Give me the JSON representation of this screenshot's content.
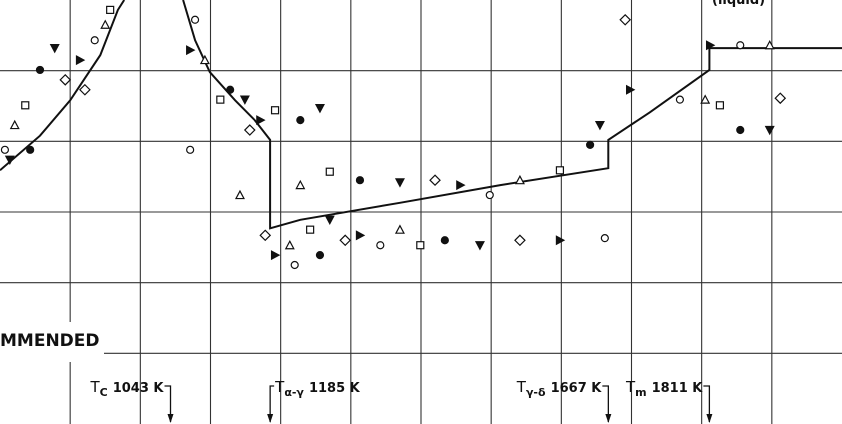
{
  "chart_data": {
    "type": "scatter",
    "xlim": [
      800,
      2000
    ],
    "ylim": [
      0,
      6
    ],
    "xticks": [
      900,
      1000,
      1100,
      1200,
      1300,
      1400,
      1500,
      1600,
      1700,
      1800,
      1900
    ],
    "yticks": [
      1,
      2,
      3,
      4,
      5
    ],
    "grid": true,
    "color": "#111111",
    "heading": "MMENDED",
    "region_label": "(liquid)",
    "line": {
      "x": [
        800,
        857,
        900,
        943,
        968,
        977,
        null,
        1061,
        1078,
        1099,
        1135,
        1163,
        1185,
        1185,
        1228,
        1370,
        1513,
        1667,
        1667,
        1726,
        1811,
        1811,
        2000
      ],
      "y": [
        3.59,
        4.08,
        4.58,
        5.22,
        5.86,
        6.0,
        null,
        6.0,
        5.43,
        4.98,
        4.58,
        4.3,
        4.02,
        2.77,
        2.89,
        3.13,
        3.38,
        3.62,
        4.02,
        4.41,
        5.01,
        5.32,
        5.32
      ]
    },
    "points": {
      "x": [
        807,
        821,
        836,
        857,
        878,
        893,
        914,
        935,
        950,
        957,
        843,
        814,
        921,
        1071,
        1078,
        1092,
        1114,
        1128,
        1149,
        1156,
        1171,
        1071,
        1142,
        1192,
        1228,
        1256,
        1178,
        1192,
        1220,
        1213,
        1242,
        1256,
        1270,
        1292,
        1313,
        1342,
        1370,
        1399,
        1434,
        1484,
        1541,
        1598,
        1662,
        1228,
        1270,
        1313,
        1370,
        1420,
        1456,
        1498,
        1541,
        1598,
        1641,
        1655,
        1691,
        1698,
        1769,
        1805,
        1826,
        1855,
        1897,
        1912,
        1812,
        1855,
        1897
      ],
      "y": [
        3.88,
        4.23,
        4.51,
        5.01,
        5.32,
        4.87,
        5.15,
        5.43,
        5.65,
        5.86,
        3.88,
        3.74,
        4.73,
        5.29,
        5.72,
        5.15,
        4.59,
        4.73,
        4.59,
        4.16,
        4.3,
        3.88,
        3.24,
        4.44,
        4.3,
        4.47,
        2.67,
        2.39,
        2.25,
        2.53,
        2.75,
        2.39,
        2.89,
        2.6,
        2.67,
        2.53,
        2.75,
        2.53,
        2.6,
        2.53,
        2.6,
        2.6,
        2.63,
        3.38,
        3.57,
        3.45,
        3.42,
        3.45,
        3.38,
        3.24,
        3.45,
        3.59,
        3.95,
        4.23,
        5.72,
        4.73,
        4.59,
        4.59,
        4.51,
        4.16,
        4.16,
        4.61,
        5.36,
        5.36,
        5.36
      ]
    },
    "annotations": [
      {
        "symbol": "T",
        "sub": "C",
        "label": "1043 K",
        "value": 1043
      },
      {
        "symbol": "T",
        "sub": "α-γ",
        "label": "1185 K",
        "value": 1185
      },
      {
        "symbol": "T",
        "sub": "γ-δ",
        "label": "1667 K",
        "value": 1667
      },
      {
        "symbol": "T",
        "sub": "m",
        "label": "1811 K",
        "value": 1811
      }
    ]
  }
}
